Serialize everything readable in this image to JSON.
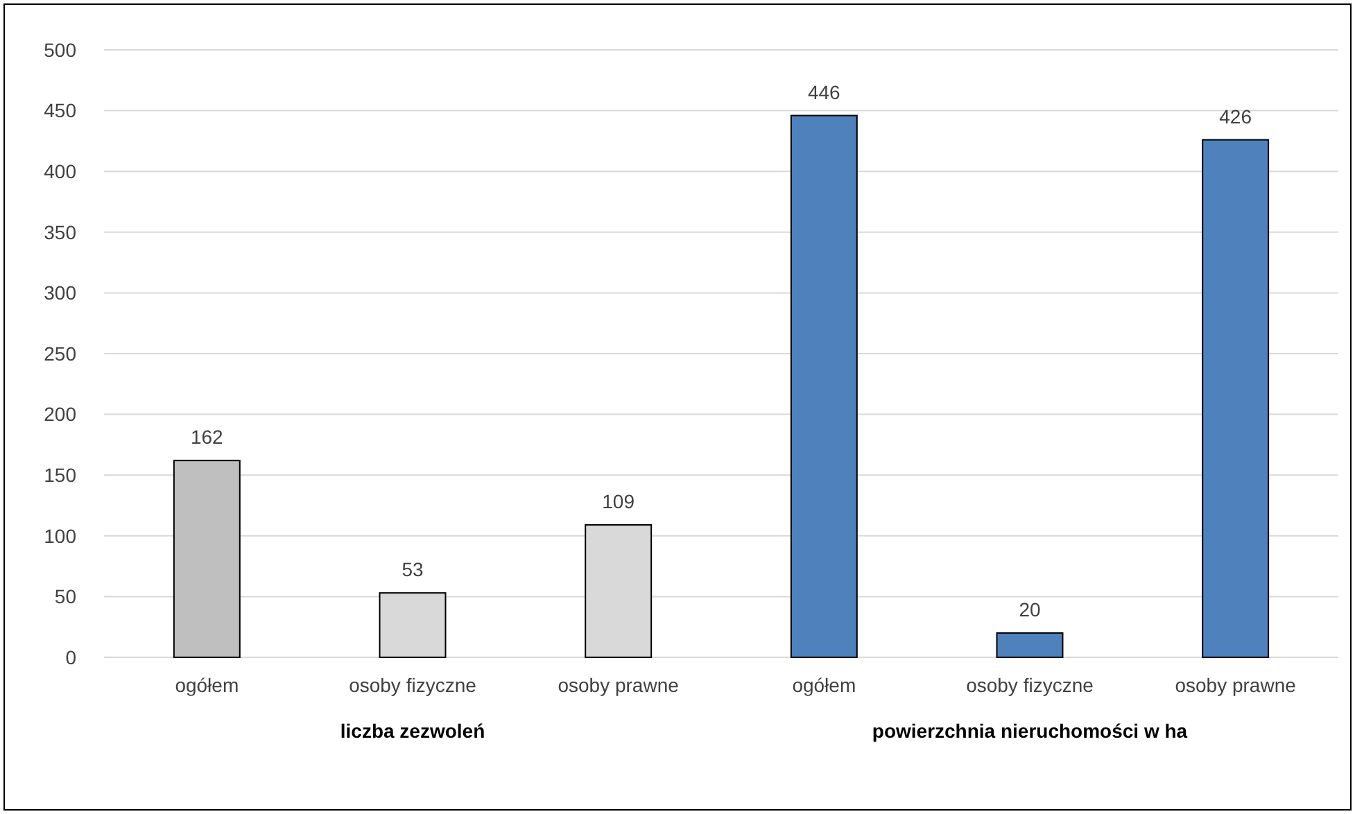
{
  "chart_data": {
    "type": "bar",
    "categories": [
      "ogółem",
      "osoby fizyczne",
      "osoby prawne",
      "ogółem",
      "osoby fizyczne",
      "osoby prawne"
    ],
    "values": [
      162,
      53,
      109,
      446,
      20,
      426
    ],
    "colors": [
      "#bfbfbf",
      "#d9d9d9",
      "#d9d9d9",
      "#4f81bd",
      "#4f81bd",
      "#4f81bd"
    ],
    "ylim": [
      0,
      500
    ],
    "yticks": [
      0,
      50,
      100,
      150,
      200,
      250,
      300,
      350,
      400,
      450,
      500
    ],
    "grid": "y",
    "data_labels": true,
    "annotations": [
      "liczba zezwoleń",
      "powierzchnia nieruchomości w ha"
    ]
  }
}
